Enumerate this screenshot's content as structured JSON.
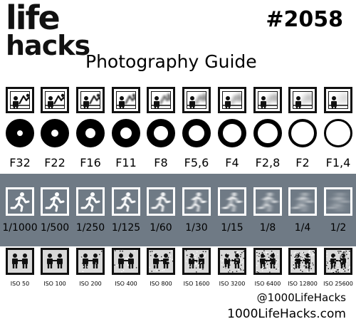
{
  "logo": {
    "line1": "life",
    "line2": "hacks"
  },
  "number": "#2058",
  "title": "Photography Guide",
  "aperture": {
    "labels": [
      "F32",
      "F22",
      "F16",
      "F11",
      "F8",
      "F5,6",
      "F4",
      "F2,8",
      "F2",
      "F1,4"
    ],
    "background_blur": [
      0,
      0.3,
      0.6,
      1,
      1.5,
      2,
      2.6,
      3.3,
      4,
      5
    ]
  },
  "shutter": {
    "labels": [
      "1/1000",
      "1/500",
      "1/250",
      "1/125",
      "1/60",
      "1/30",
      "1/15",
      "1/8",
      "1/4",
      "1/2"
    ],
    "motion_blur": [
      0,
      0,
      0.2,
      0.5,
      1,
      1.5,
      2.2,
      3,
      4,
      5.5
    ]
  },
  "iso": {
    "labels": [
      "ISO 50",
      "ISO 100",
      "ISO 200",
      "ISO 400",
      "ISO 800",
      "ISO 1600",
      "ISO 3200",
      "ISO 6400",
      "ISO 12800",
      "ISO 25600"
    ],
    "noise": [
      0,
      0,
      0.1,
      0.2,
      0.3,
      0.45,
      0.6,
      0.72,
      0.85,
      1
    ]
  },
  "footer": {
    "handle": "@1000LifeHacks",
    "website": "1000LifeHacks.com"
  },
  "colors": {
    "shutter_band": "#6f7a85",
    "ink": "#111111"
  }
}
